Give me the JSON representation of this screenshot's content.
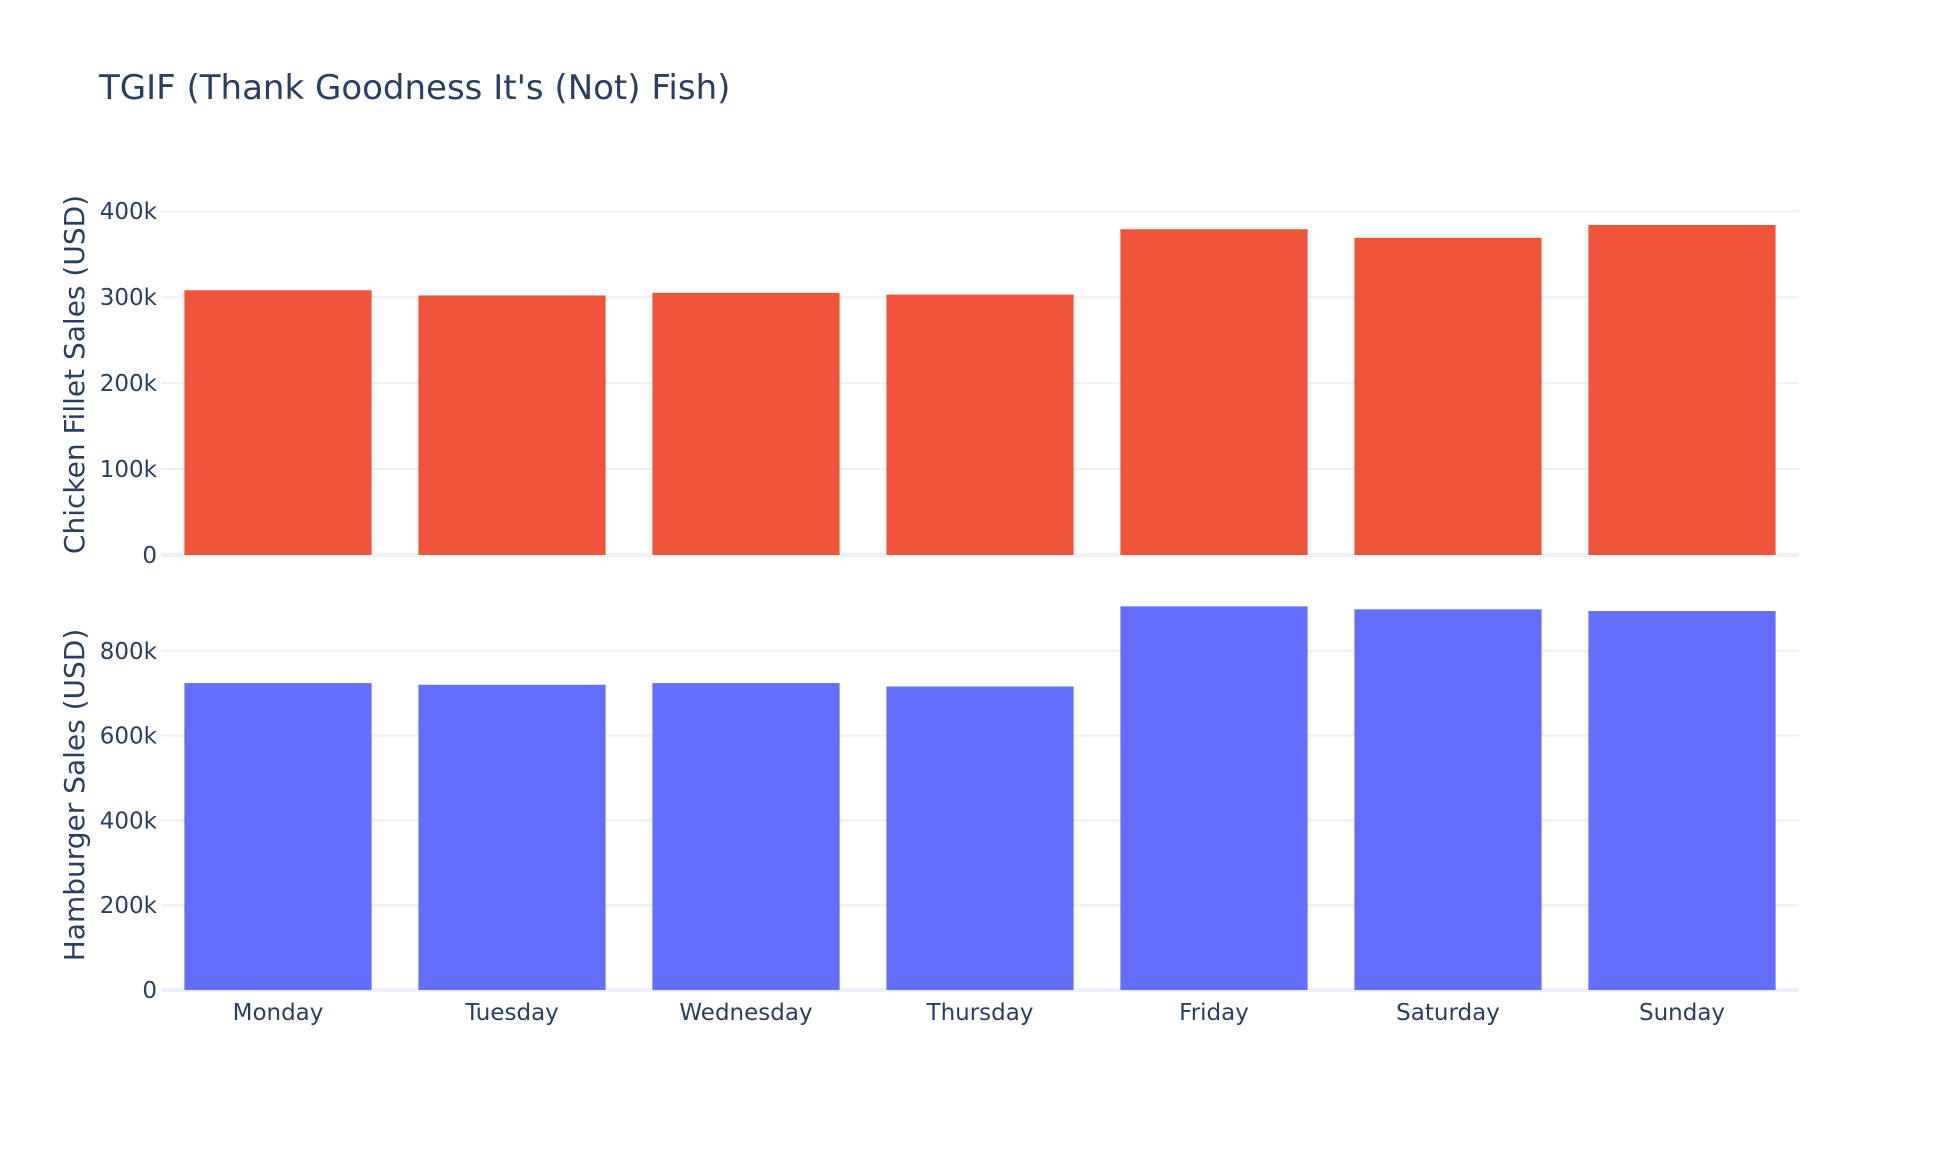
{
  "chart_data": {
    "type": "bar",
    "title": "TGIF (Thank Goodness It's (Not) Fish)",
    "categories": [
      "Monday",
      "Tuesday",
      "Wednesday",
      "Thursday",
      "Friday",
      "Saturday",
      "Sunday"
    ],
    "subplots": [
      {
        "ylabel": "Chicken Fillet Sales (USD)",
        "ylim": [
          0,
          420000
        ],
        "yticks": [
          0,
          100000,
          200000,
          300000,
          400000
        ],
        "ytick_labels": [
          "0",
          "100k",
          "200k",
          "300k",
          "400k"
        ],
        "color": "#ef553b",
        "values": [
          308000,
          302000,
          305000,
          303000,
          379000,
          369000,
          384000
        ]
      },
      {
        "ylabel": "Hamburger Sales (USD)",
        "ylim": [
          0,
          920000
        ],
        "yticks": [
          0,
          200000,
          400000,
          600000,
          800000
        ],
        "ytick_labels": [
          "0",
          "200k",
          "400k",
          "600k",
          "800k"
        ],
        "color": "#636efa",
        "values": [
          724000,
          720000,
          724000,
          716000,
          905000,
          898000,
          894000
        ]
      }
    ],
    "grid": true,
    "legend": "none"
  }
}
